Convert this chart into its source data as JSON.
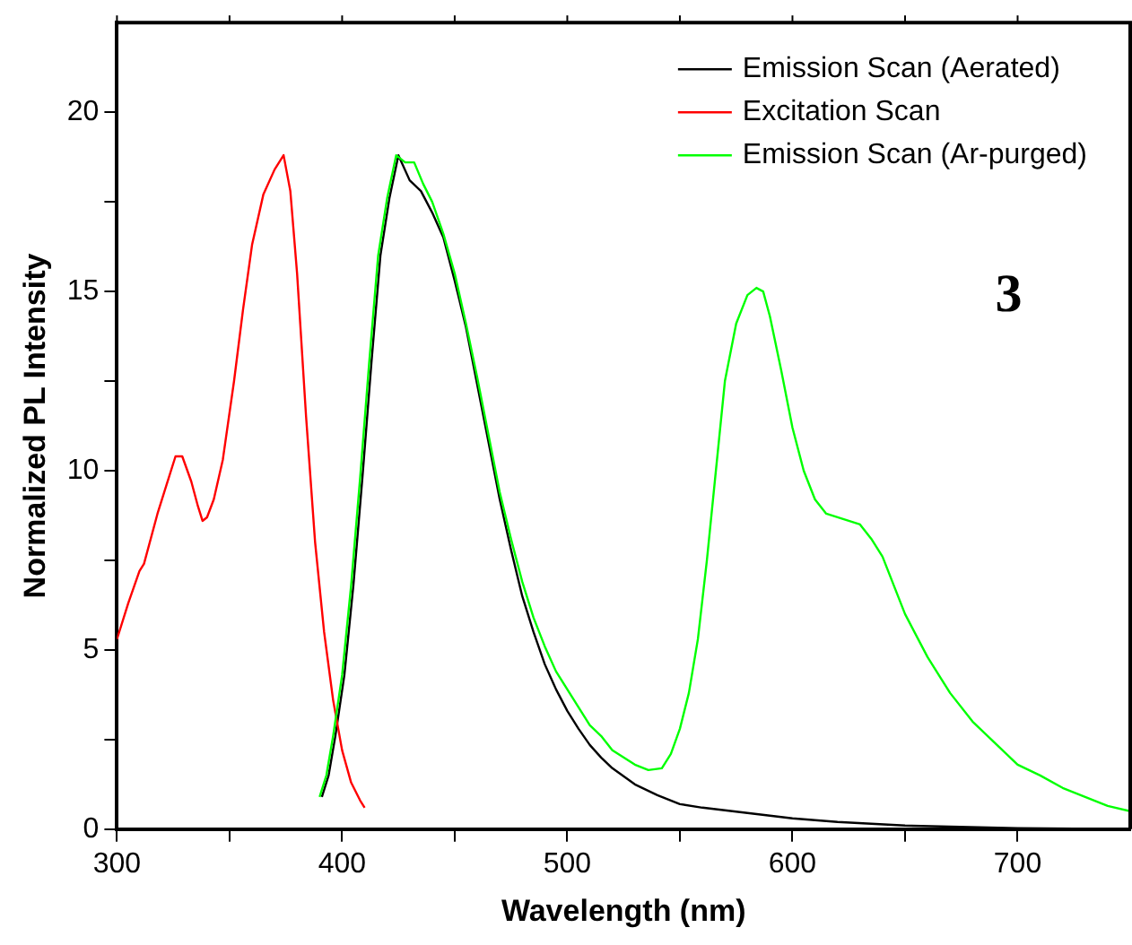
{
  "chart_data": {
    "type": "line",
    "xlabel": "Wavelength (nm)",
    "ylabel": "Normalized PL Intensity",
    "annotations": [
      "3"
    ],
    "legend": "top right",
    "grid": false,
    "marker": "none",
    "line_style": "solid",
    "xlim": [
      300,
      750
    ],
    "xticks": [
      300,
      {
        "value": 350,
        "label": null
      },
      400,
      {
        "value": 450,
        "label": null
      },
      500,
      {
        "value": 550,
        "label": null
      },
      600,
      {
        "value": 650,
        "label": null
      },
      700
    ],
    "ylim": [
      0,
      22.5
    ],
    "yticks": [
      0,
      {
        "value": 2.5,
        "label": null
      },
      5,
      {
        "value": 7.5,
        "label": null
      },
      10,
      {
        "value": 12.5,
        "label": null
      },
      15,
      {
        "value": 17.5,
        "label": null
      },
      20
    ],
    "series": [
      {
        "name": "Emission Scan (Aerated)",
        "color": "#000000",
        "x": [
          391,
          394,
          397,
          401,
          405,
          409,
          413,
          417,
          421,
          425,
          430,
          435,
          440,
          445,
          450,
          455,
          460,
          465,
          470,
          475,
          480,
          485,
          490,
          495,
          500,
          505,
          510,
          515,
          520,
          530,
          540,
          550,
          560,
          580,
          600,
          620,
          650,
          700,
          750
        ],
        "values": [
          0.9,
          1.5,
          2.6,
          4.3,
          6.8,
          9.8,
          13.0,
          16.0,
          17.6,
          18.8,
          18.1,
          17.8,
          17.2,
          16.5,
          15.3,
          14.0,
          12.4,
          10.8,
          9.2,
          7.8,
          6.5,
          5.5,
          4.6,
          3.9,
          3.3,
          2.8,
          2.35,
          2.0,
          1.7,
          1.25,
          0.95,
          0.7,
          0.6,
          0.45,
          0.3,
          0.2,
          0.1,
          0.03,
          0
        ]
      },
      {
        "name": "Excitation Scan",
        "color": "#ff0000",
        "x": [
          300,
          305,
          310,
          312,
          318,
          322,
          326,
          329,
          333,
          336,
          338,
          340,
          343,
          347,
          352,
          356,
          360,
          365,
          370,
          374,
          377,
          380,
          384,
          388,
          392,
          396,
          400,
          404,
          408,
          410
        ],
        "values": [
          5.3,
          6.3,
          7.2,
          7.4,
          8.8,
          9.6,
          10.4,
          10.4,
          9.7,
          9.0,
          8.6,
          8.7,
          9.2,
          10.3,
          12.5,
          14.5,
          16.3,
          17.7,
          18.4,
          18.8,
          17.8,
          15.5,
          11.5,
          8.0,
          5.5,
          3.6,
          2.2,
          1.3,
          0.8,
          0.6
        ]
      },
      {
        "name": "Emission Scan (Ar-purged)",
        "color": "#00ff00",
        "x": [
          390,
          393,
          396,
          400,
          404,
          408,
          412,
          416,
          420,
          424,
          428,
          432,
          436,
          440,
          445,
          450,
          455,
          460,
          465,
          470,
          475,
          480,
          485,
          490,
          495,
          500,
          505,
          510,
          515,
          520,
          525,
          530,
          536,
          542,
          546,
          550,
          554,
          558,
          562,
          566,
          570,
          575,
          580,
          584,
          587,
          590,
          595,
          600,
          605,
          610,
          615,
          620,
          625,
          630,
          635,
          640,
          645,
          650,
          660,
          670,
          680,
          690,
          700,
          710,
          720,
          730,
          740,
          750
        ],
        "values": [
          0.9,
          1.5,
          2.6,
          4.3,
          6.8,
          9.8,
          13.0,
          16.0,
          17.6,
          18.8,
          18.6,
          18.6,
          18.0,
          17.5,
          16.6,
          15.5,
          14.1,
          12.6,
          11.0,
          9.4,
          8.1,
          6.9,
          5.9,
          5.1,
          4.4,
          3.9,
          3.4,
          2.9,
          2.6,
          2.2,
          2.0,
          1.8,
          1.65,
          1.7,
          2.1,
          2.8,
          3.8,
          5.3,
          7.5,
          10.0,
          12.5,
          14.1,
          14.9,
          15.1,
          15.0,
          14.3,
          12.8,
          11.2,
          10.0,
          9.2,
          8.8,
          8.7,
          8.6,
          8.5,
          8.1,
          7.6,
          6.8,
          6.0,
          4.8,
          3.8,
          3.0,
          2.4,
          1.8,
          1.5,
          1.15,
          0.9,
          0.65,
          0.5
        ]
      }
    ]
  }
}
